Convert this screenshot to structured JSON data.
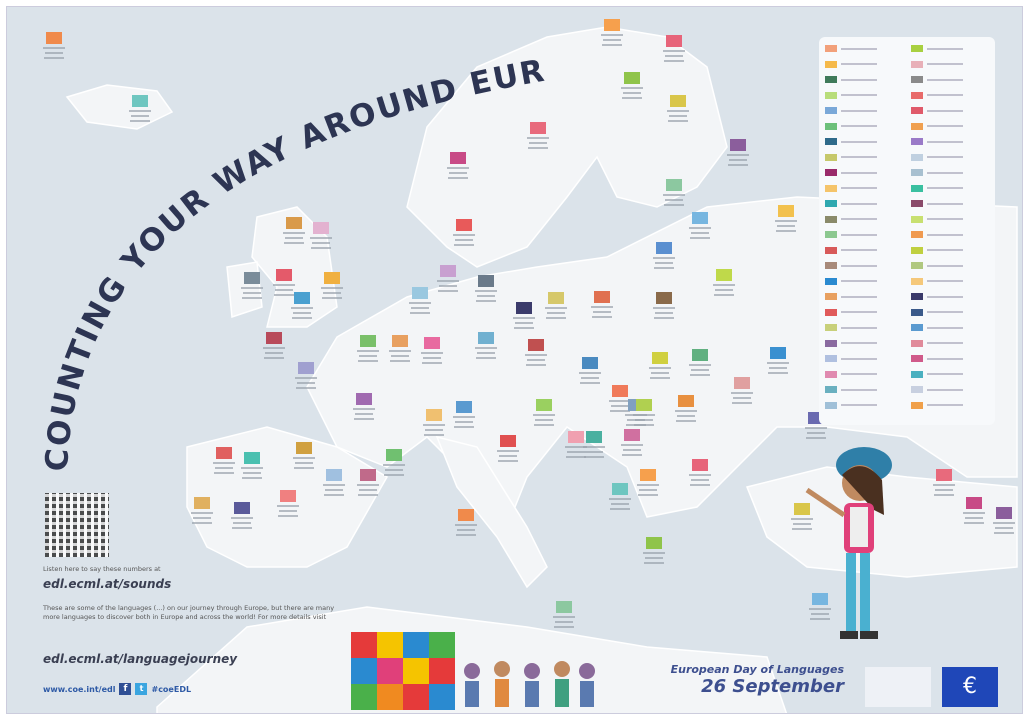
{
  "title": "COUNTING YOUR WAY AROUND EUROPE",
  "listen_text": "Listen here to say these numbers at",
  "sounds_url": "edl.ecml.at/sounds",
  "description": "These are some of the languages (...) on our journey through Europe, but there are many more languages to discover both in Europe and across the world! For more details visit",
  "journey_url": "edl.ecml.at/languagejourney",
  "social": {
    "site": "www.coe.int/edl",
    "facebook_icon": "f",
    "twitter_icon": "t",
    "hashtag": "#coeEDL"
  },
  "event": {
    "name": "European Day of Languages",
    "date": "26 September"
  },
  "colors": {
    "sea": "#dbe3ea",
    "land": "#f3f5f7",
    "title": "#2d3553",
    "accent": "#2e5aa6"
  },
  "marker_colors": [
    "#f08a4b",
    "#6ec6c0",
    "#f6a04d",
    "#e7647a",
    "#8fc44a",
    "#d9c64a",
    "#e86a7c",
    "#c84a86",
    "#8b5e9c",
    "#8cc8a0",
    "#77b6e0",
    "#f2c14e",
    "#e85a5a",
    "#5a8fd0",
    "#bfd94a",
    "#d99a4a",
    "#e3b2d0",
    "#7a8c9a",
    "#e45a6a",
    "#4aa0d0",
    "#f0b040",
    "#9ac8e0",
    "#c8a0d0",
    "#6a7a8a",
    "#3b3b6b",
    "#d6c86a",
    "#e07050",
    "#8a6a4a",
    "#b84a5a",
    "#a0a0d0",
    "#7ac06a",
    "#e8a060",
    "#e86aa0",
    "#70b0d0",
    "#c05050",
    "#4a8ac0",
    "#f07a5a",
    "#d0d040",
    "#60b080",
    "#e0a0a0",
    "#3a90d0",
    "#a06ab0",
    "#f0c070",
    "#5a9ad0",
    "#e05050",
    "#9ad060",
    "#f0a0b0",
    "#4ab0a0",
    "#d070a0",
    "#80a0c0",
    "#e89040",
    "#b0d050",
    "#6a6ab0",
    "#e06060",
    "#4ac0b0",
    "#d0a040",
    "#a0c0e0",
    "#c06a8a",
    "#70c070",
    "#e0b060",
    "#5a5a9a",
    "#f08080"
  ],
  "legend_colors": [
    "#f2a07a",
    "#f5b94a",
    "#3f7a5a",
    "#b8dd7a",
    "#7aa8d8",
    "#6cc07a",
    "#2f6a8a",
    "#c6c86a",
    "#9a2a6a",
    "#f5c46a",
    "#2fa8b0",
    "#8a8a6a",
    "#8cc890",
    "#d85a5a",
    "#a88a7a",
    "#2a8ad0",
    "#e8a060",
    "#e05a5a",
    "#c8d07a",
    "#8a6aa0",
    "#b0c0e0",
    "#e08ab0",
    "#6ab0c0",
    "#a0c0d8",
    "#a8d040",
    "#e8b0b8",
    "#8a8a8a",
    "#e86a6a",
    "#e05a6a",
    "#f0a050",
    "#9a7ac8",
    "#c0d0e0",
    "#a8c0d0",
    "#3ac0a0",
    "#8a4a6a",
    "#c8e070",
    "#f09a50",
    "#c0d040",
    "#b0c880",
    "#f5c87a",
    "#3a3a6a",
    "#3a5a8a",
    "#5a9ad0",
    "#e08a9a",
    "#d05a8a",
    "#4ab0c0",
    "#c8d0e0",
    "#f0a04a"
  ]
}
